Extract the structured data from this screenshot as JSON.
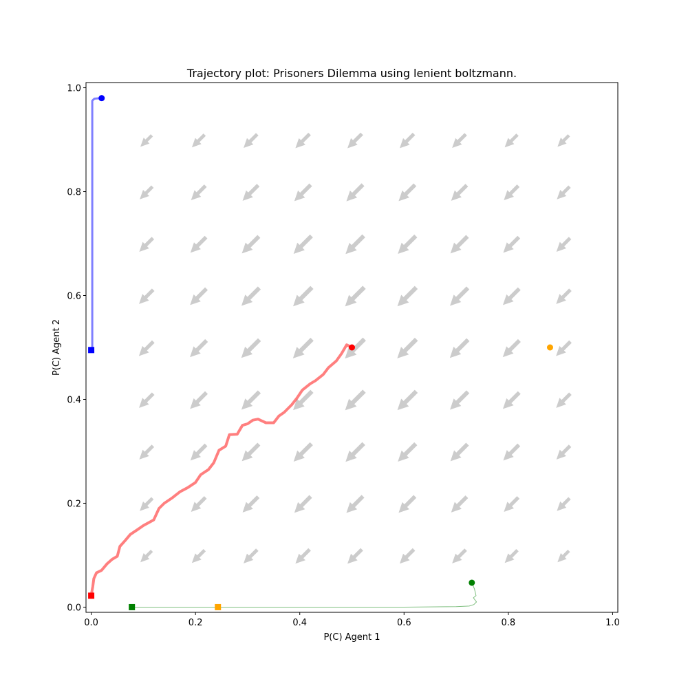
{
  "chart_data": {
    "type": "scatter",
    "title": "Trajectory plot: Prisoners Dilemma using lenient boltzmann.",
    "xlabel": "P(C) Agent 1",
    "ylabel": "P(C) Agent 2",
    "xlim": [
      -0.01,
      1.01
    ],
    "ylim": [
      -0.01,
      1.01
    ],
    "xticks": [
      0.0,
      0.2,
      0.4,
      0.6,
      0.8,
      1.0
    ],
    "yticks": [
      0.0,
      0.2,
      0.4,
      0.6,
      0.8,
      1.0
    ],
    "xtick_labels": [
      "0.0",
      "0.2",
      "0.4",
      "0.6",
      "0.8",
      "1.0"
    ],
    "ytick_labels": [
      "0.0",
      "0.2",
      "0.4",
      "0.6",
      "0.8",
      "1.0"
    ],
    "grid": false,
    "quiver": {
      "color": "#cccccc",
      "grid": [
        0.1,
        0.2,
        0.3,
        0.4,
        0.5,
        0.6,
        0.7,
        0.8,
        0.9
      ]
    },
    "trajectories": [
      {
        "color": "#0000ff",
        "width": 3,
        "start": [
          0.02,
          0.98
        ],
        "end": [
          0.0,
          0.495
        ],
        "points": [
          [
            0.02,
            0.98
          ],
          [
            0.006,
            0.979
          ],
          [
            0.002,
            0.975
          ],
          [
            0.002,
            0.9
          ],
          [
            0.002,
            0.75
          ],
          [
            0.002,
            0.6
          ],
          [
            0.002,
            0.5
          ],
          [
            0.0,
            0.495
          ]
        ]
      },
      {
        "color": "#ff0000",
        "width": 4,
        "start": [
          0.5,
          0.5
        ],
        "end": [
          0.0,
          0.022
        ],
        "points": [
          [
            0.5,
            0.5
          ],
          [
            0.49,
            0.505
          ],
          [
            0.48,
            0.488
          ],
          [
            0.47,
            0.474
          ],
          [
            0.455,
            0.461
          ],
          [
            0.445,
            0.448
          ],
          [
            0.43,
            0.436
          ],
          [
            0.42,
            0.43
          ],
          [
            0.405,
            0.418
          ],
          [
            0.395,
            0.403
          ],
          [
            0.385,
            0.39
          ],
          [
            0.37,
            0.375
          ],
          [
            0.36,
            0.368
          ],
          [
            0.35,
            0.355
          ],
          [
            0.335,
            0.355
          ],
          [
            0.32,
            0.362
          ],
          [
            0.31,
            0.36
          ],
          [
            0.3,
            0.353
          ],
          [
            0.29,
            0.35
          ],
          [
            0.28,
            0.333
          ],
          [
            0.265,
            0.332
          ],
          [
            0.258,
            0.31
          ],
          [
            0.245,
            0.302
          ],
          [
            0.235,
            0.278
          ],
          [
            0.225,
            0.265
          ],
          [
            0.21,
            0.255
          ],
          [
            0.2,
            0.24
          ],
          [
            0.185,
            0.23
          ],
          [
            0.17,
            0.222
          ],
          [
            0.155,
            0.21
          ],
          [
            0.14,
            0.2
          ],
          [
            0.13,
            0.19
          ],
          [
            0.12,
            0.168
          ],
          [
            0.1,
            0.157
          ],
          [
            0.09,
            0.15
          ],
          [
            0.075,
            0.14
          ],
          [
            0.065,
            0.128
          ],
          [
            0.055,
            0.117
          ],
          [
            0.05,
            0.098
          ],
          [
            0.04,
            0.092
          ],
          [
            0.03,
            0.083
          ],
          [
            0.02,
            0.071
          ],
          [
            0.01,
            0.066
          ],
          [
            0.005,
            0.055
          ],
          [
            0.003,
            0.04
          ],
          [
            0.001,
            0.028
          ],
          [
            0.0,
            0.022
          ]
        ]
      },
      {
        "color": "#008000",
        "width": 1,
        "start": [
          0.73,
          0.047
        ],
        "end": [
          0.078,
          0.0
        ],
        "points": [
          [
            0.73,
            0.047
          ],
          [
            0.735,
            0.035
          ],
          [
            0.738,
            0.022
          ],
          [
            0.733,
            0.018
          ],
          [
            0.739,
            0.01
          ],
          [
            0.734,
            0.005
          ],
          [
            0.725,
            0.002
          ],
          [
            0.7,
            0.001
          ],
          [
            0.6,
            0.0
          ],
          [
            0.4,
            0.0
          ],
          [
            0.2,
            0.0
          ],
          [
            0.078,
            0.0
          ]
        ]
      },
      {
        "color": "#ffa500",
        "width": 1,
        "start": [
          0.88,
          0.5
        ],
        "end": [
          0.243,
          0.0
        ],
        "points": []
      }
    ]
  }
}
